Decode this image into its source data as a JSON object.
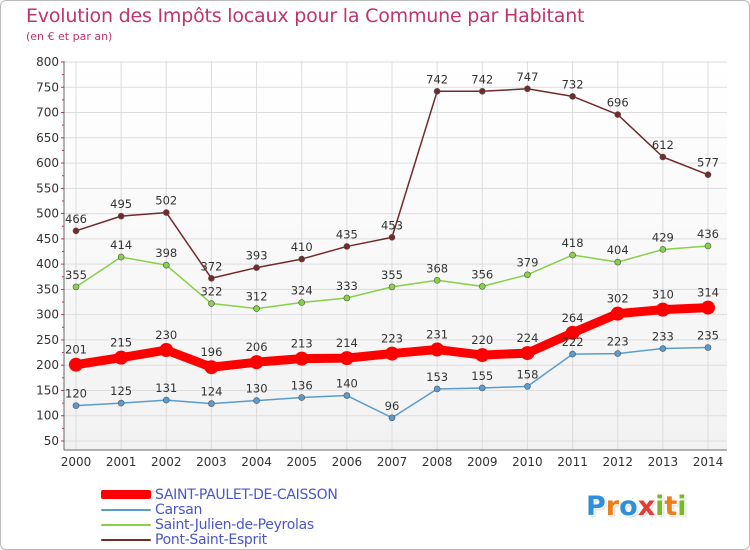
{
  "header": {
    "title": "Evolution des Impôts locaux pour la Commune par Habitant",
    "subtitle": "(en € et par an)"
  },
  "logo": {
    "text": "Proxiti",
    "letters": [
      {
        "ch": "P",
        "color": "#2f8fd8"
      },
      {
        "ch": "r",
        "color": "#ef7d1a"
      },
      {
        "ch": "o",
        "color": "#2f8fd8"
      },
      {
        "ch": "x",
        "color": "#e43b36"
      },
      {
        "ch": "i",
        "color": "#79b829"
      },
      {
        "ch": "t",
        "color": "#ef7d1a"
      },
      {
        "ch": "i",
        "color": "#79b829"
      }
    ]
  },
  "chart_data": {
    "type": "line",
    "title": "Evolution des Impôts locaux pour la Commune par Habitant",
    "subtitle": "(en € et par an)",
    "x": [
      2000,
      2001,
      2002,
      2003,
      2004,
      2005,
      2006,
      2007,
      2008,
      2009,
      2010,
      2011,
      2012,
      2013,
      2014
    ],
    "ylim": [
      50,
      800
    ],
    "yticks": [
      50,
      100,
      150,
      200,
      250,
      300,
      350,
      400,
      450,
      500,
      550,
      600,
      650,
      700,
      750,
      800
    ],
    "grid": true,
    "legend_position": "bottom-left",
    "series": [
      {
        "name": "SAINT-PAULET-DE-CAISSON",
        "color": "#ff0000",
        "values": [
          201,
          215,
          230,
          196,
          206,
          213,
          214,
          223,
          231,
          220,
          224,
          264,
          302,
          310,
          314
        ]
      },
      {
        "name": "Carsan",
        "color": "#5a9bd0",
        "values": [
          120,
          125,
          131,
          124,
          130,
          136,
          140,
          96,
          153,
          155,
          158,
          222,
          223,
          233,
          235
        ]
      },
      {
        "name": "Saint-Julien-de-Peyrolas",
        "color": "#86d04a",
        "values": [
          355,
          414,
          398,
          322,
          312,
          324,
          333,
          355,
          368,
          356,
          379,
          418,
          404,
          429,
          436
        ]
      },
      {
        "name": "Pont-Saint-Esprit",
        "color": "#722a2a",
        "values": [
          466,
          495,
          502,
          372,
          393,
          410,
          435,
          453,
          742,
          742,
          747,
          732,
          696,
          612,
          577
        ]
      }
    ]
  }
}
